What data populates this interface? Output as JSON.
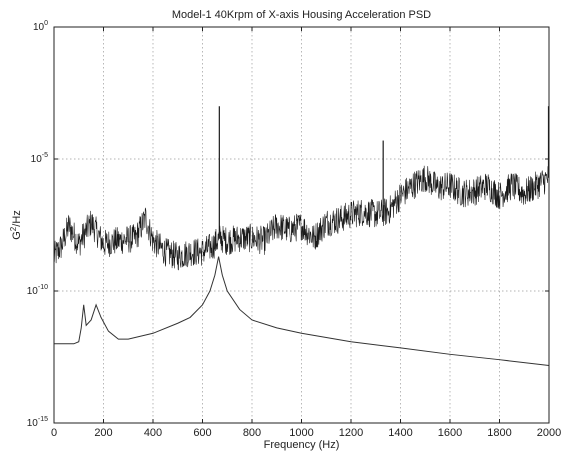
{
  "chart_data": {
    "type": "line",
    "title": "Model-1 40Krpm of X-axis Housing Acceleration PSD",
    "xlabel": "Frequency (Hz)",
    "ylabel_base": "G",
    "ylabel_sup": "2",
    "ylabel_rest": "/Hz",
    "xlim": [
      0,
      2000
    ],
    "ylim": [
      1e-15,
      1
    ],
    "yscale": "log",
    "grid": true,
    "x_ticks": [
      "0",
      "200",
      "400",
      "600",
      "800",
      "1000",
      "1200",
      "1400",
      "1600",
      "1800",
      "2000"
    ],
    "y_ticks": [
      {
        "base": "10",
        "exp": "0"
      },
      {
        "base": "10",
        "exp": "-5"
      },
      {
        "base": "10",
        "exp": "-10"
      },
      {
        "base": "10",
        "exp": "-15"
      }
    ],
    "series": [
      {
        "style": "noisy-measured",
        "x": [
          0,
          30,
          60,
          100,
          150,
          200,
          260,
          330,
          370,
          400,
          450,
          500,
          550,
          600,
          640,
          670,
          700,
          750,
          800,
          850,
          900,
          950,
          1000,
          1050,
          1100,
          1150,
          1200,
          1250,
          1300,
          1350,
          1400,
          1450,
          1500,
          1550,
          1600,
          1650,
          1700,
          1750,
          1800,
          1850,
          1900,
          1950,
          2000
        ],
        "y": [
          2e-09,
          5e-09,
          3e-08,
          6e-09,
          4e-08,
          6e-09,
          8e-09,
          1e-08,
          6e-08,
          8e-09,
          3e-09,
          2e-09,
          3e-09,
          3e-09,
          5e-09,
          1e-08,
          8e-09,
          1e-08,
          1e-08,
          8e-09,
          3e-08,
          2e-08,
          3e-08,
          1e-08,
          4e-08,
          5e-08,
          8e-08,
          1e-07,
          8e-08,
          1e-07,
          4e-07,
          1e-06,
          2e-06,
          8e-07,
          1e-06,
          5e-07,
          6e-07,
          1e-06,
          4e-07,
          1e-06,
          5e-07,
          1e-06,
          2e-06
        ],
        "spikes": [
          {
            "x": 668,
            "y": 0.001
          },
          {
            "x": 1330,
            "y": 5e-05
          },
          {
            "x": 1998,
            "y": 0.001
          }
        ]
      },
      {
        "style": "model",
        "x": [
          0,
          80,
          100,
          110,
          120,
          130,
          150,
          170,
          190,
          220,
          260,
          300,
          400,
          500,
          550,
          600,
          630,
          650,
          665,
          680,
          700,
          750,
          800,
          900,
          1000,
          1200,
          1400,
          1600,
          1800,
          2000
        ],
        "y": [
          1e-12,
          1e-12,
          1.2e-12,
          4e-12,
          3e-11,
          5e-12,
          8e-12,
          3e-11,
          1e-11,
          3e-12,
          1.5e-12,
          1.5e-12,
          2.5e-12,
          6e-12,
          1e-11,
          3e-11,
          1e-10,
          4e-10,
          2e-09,
          4e-10,
          1e-10,
          2e-11,
          8e-12,
          4e-12,
          2.5e-12,
          1.2e-12,
          7e-13,
          4e-13,
          2.5e-13,
          1.5e-13
        ]
      }
    ]
  }
}
